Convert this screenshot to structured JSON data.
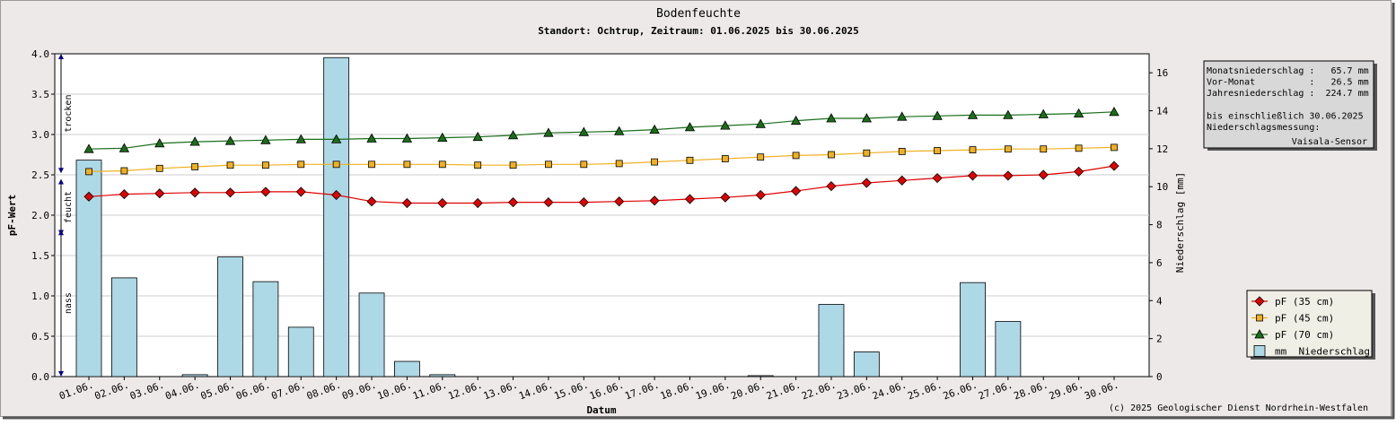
{
  "chart_data": {
    "type": "bar",
    "title": "Bodenfeuchte",
    "subtitle": "Standort: Ochtrup, Zeitraum: 01.06.2025 bis 30.06.2025",
    "xlabel": "Datum",
    "ylabel": "pF-Wert",
    "y2label": "Niederschlag [mm]",
    "ylim": [
      0,
      4
    ],
    "y2lim": [
      0,
      17
    ],
    "y_ticks": [
      "0.0",
      "0.5",
      "1.0",
      "1.5",
      "2.0",
      "2.5",
      "3.0",
      "3.5",
      "4.0"
    ],
    "y2_ticks": [
      "0",
      "2",
      "4",
      "6",
      "8",
      "10",
      "12",
      "14",
      "16"
    ],
    "grid": true,
    "categories": [
      "01.06.",
      "02.06.",
      "03.06.",
      "04.06.",
      "05.06.",
      "06.06.",
      "07.06.",
      "08.06.",
      "09.06.",
      "10.06.",
      "11.06.",
      "12.06.",
      "13.06.",
      "14.06.",
      "15.06.",
      "16.06.",
      "17.06.",
      "18.06.",
      "19.06.",
      "20.06.",
      "21.06.",
      "22.06.",
      "23.06.",
      "24.06.",
      "25.06.",
      "26.06.",
      "27.06.",
      "28.06.",
      "29.06.",
      "30.06."
    ],
    "series": [
      {
        "name": "pF (35 cm)",
        "kind": "line",
        "axis": "left",
        "color": "#e00000",
        "marker": "diamond",
        "values": [
          2.23,
          2.26,
          2.27,
          2.28,
          2.28,
          2.29,
          2.29,
          2.25,
          2.17,
          2.15,
          2.15,
          2.15,
          2.16,
          2.16,
          2.16,
          2.17,
          2.18,
          2.2,
          2.22,
          2.25,
          2.3,
          2.36,
          2.4,
          2.43,
          2.46,
          2.49,
          2.49,
          2.5,
          2.54,
          2.61
        ]
      },
      {
        "name": "pF (45 cm)",
        "kind": "line",
        "axis": "left",
        "color": "#f0b020",
        "marker": "square",
        "values": [
          2.54,
          2.55,
          2.58,
          2.6,
          2.62,
          2.62,
          2.63,
          2.63,
          2.63,
          2.63,
          2.63,
          2.62,
          2.62,
          2.63,
          2.63,
          2.64,
          2.66,
          2.68,
          2.7,
          2.72,
          2.74,
          2.75,
          2.77,
          2.79,
          2.8,
          2.81,
          2.82,
          2.82,
          2.83,
          2.84
        ]
      },
      {
        "name": "pF (70 cm)",
        "kind": "line",
        "axis": "left",
        "color": "#1a6e1a",
        "marker": "triangle",
        "values": [
          2.82,
          2.83,
          2.89,
          2.91,
          2.92,
          2.93,
          2.94,
          2.94,
          2.95,
          2.95,
          2.96,
          2.97,
          2.99,
          3.02,
          3.03,
          3.04,
          3.06,
          3.09,
          3.11,
          3.13,
          3.17,
          3.2,
          3.2,
          3.22,
          3.23,
          3.24,
          3.24,
          3.25,
          3.26,
          3.28
        ]
      },
      {
        "name": "mm  Niederschlag",
        "kind": "bar",
        "axis": "right",
        "color": "#add8e6",
        "values": [
          11.4,
          5.2,
          0,
          0.1,
          6.3,
          5.0,
          2.6,
          16.8,
          4.4,
          0.8,
          0.1,
          0,
          0,
          0,
          0,
          0,
          0,
          0,
          0,
          0.05,
          0,
          3.8,
          1.3,
          0,
          0,
          4.95,
          2.9,
          0,
          0,
          0
        ]
      }
    ],
    "legend_placement": "bottom-right",
    "zones": [
      {
        "label": "trocken",
        "from": 2.52,
        "to": 4.0
      },
      {
        "label": "feucht",
        "from": 1.75,
        "to": 2.45
      },
      {
        "label": "nass",
        "from": 0.0,
        "to": 1.82
      }
    ]
  },
  "infobox": {
    "lines": [
      "Monatsniederschlag :   65.7 mm",
      "Vor-Monat          :   26.5 mm",
      "Jahresniederschlag :  224.7 mm",
      "",
      "bis einschließlich 30.06.2025",
      "Niederschlagsmessung:"
    ],
    "sensor": "Vaisala-Sensor"
  },
  "copyright": "(c) 2025 Geologischer Dienst Nordrhein-Westfalen",
  "colors": {
    "background": "#ece9e8",
    "plot": "#ffffff",
    "infobox_bg": "#d8d8d8",
    "legend_bg": "#f0efe6",
    "zone_arrow": "#00008b"
  }
}
